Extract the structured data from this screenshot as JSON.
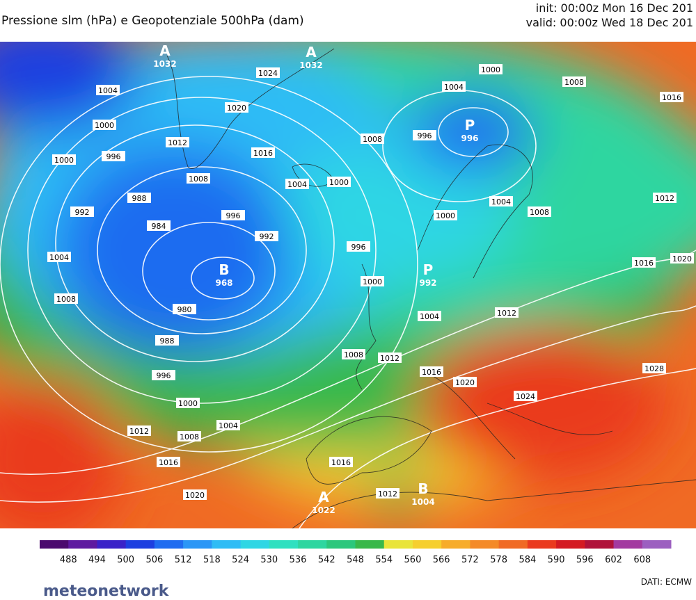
{
  "header": {
    "title": "Pressione slm (hPa) e Geopotenziale 500hPa (dam)",
    "init": "init: 00:00z Mon 16 Dec 201",
    "valid": "valid: 00:00z Wed 18 Dec 201"
  },
  "map": {
    "centers": [
      {
        "letter": "A",
        "value": "1032"
      },
      {
        "letter": "A",
        "value": "1032"
      },
      {
        "letter": "B",
        "value": "968"
      },
      {
        "letter": "P",
        "value": "996"
      },
      {
        "letter": "P",
        "value": "992"
      },
      {
        "letter": "A",
        "value": "1022"
      },
      {
        "letter": "B",
        "value": "1004"
      }
    ],
    "isobar_labels": [
      "1004",
      "1000",
      "1000",
      "996",
      "992",
      "988",
      "984",
      "996",
      "992",
      "1004",
      "1008",
      "980",
      "988",
      "996",
      "1000",
      "1004",
      "1008",
      "1012",
      "1016",
      "1020",
      "1024",
      "1020",
      "1012",
      "1008",
      "1016",
      "1004",
      "1000",
      "1008",
      "996",
      "1000",
      "1004",
      "1008",
      "1016",
      "1012",
      "1004",
      "1008",
      "1000",
      "996",
      "1000",
      "1004",
      "1012",
      "1008",
      "1012",
      "1016",
      "1020",
      "1024",
      "1028",
      "1016",
      "1020",
      "1016",
      "1012"
    ]
  },
  "legend": {
    "ticks": [
      "488",
      "494",
      "500",
      "506",
      "512",
      "518",
      "524",
      "530",
      "536",
      "542",
      "548",
      "554",
      "560",
      "566",
      "572",
      "578",
      "584",
      "590",
      "596",
      "602",
      "608"
    ],
    "colors": [
      "#4b0a6e",
      "#5e1aa0",
      "#3a22c8",
      "#1d3fe0",
      "#1f6cf0",
      "#2a96f6",
      "#2fbcf5",
      "#2fd6e4",
      "#2fe0c0",
      "#2ed6a0",
      "#2cc77c",
      "#39b84a",
      "#e9e43a",
      "#f6cf2e",
      "#f7ac2a",
      "#f48a28",
      "#f06a24",
      "#ea3a1e",
      "#d41a22",
      "#b0123a",
      "#a33aa0",
      "#9c5fc0"
    ]
  },
  "footer": {
    "source": "DATI: ECMW",
    "logo": "meteonetwork"
  }
}
